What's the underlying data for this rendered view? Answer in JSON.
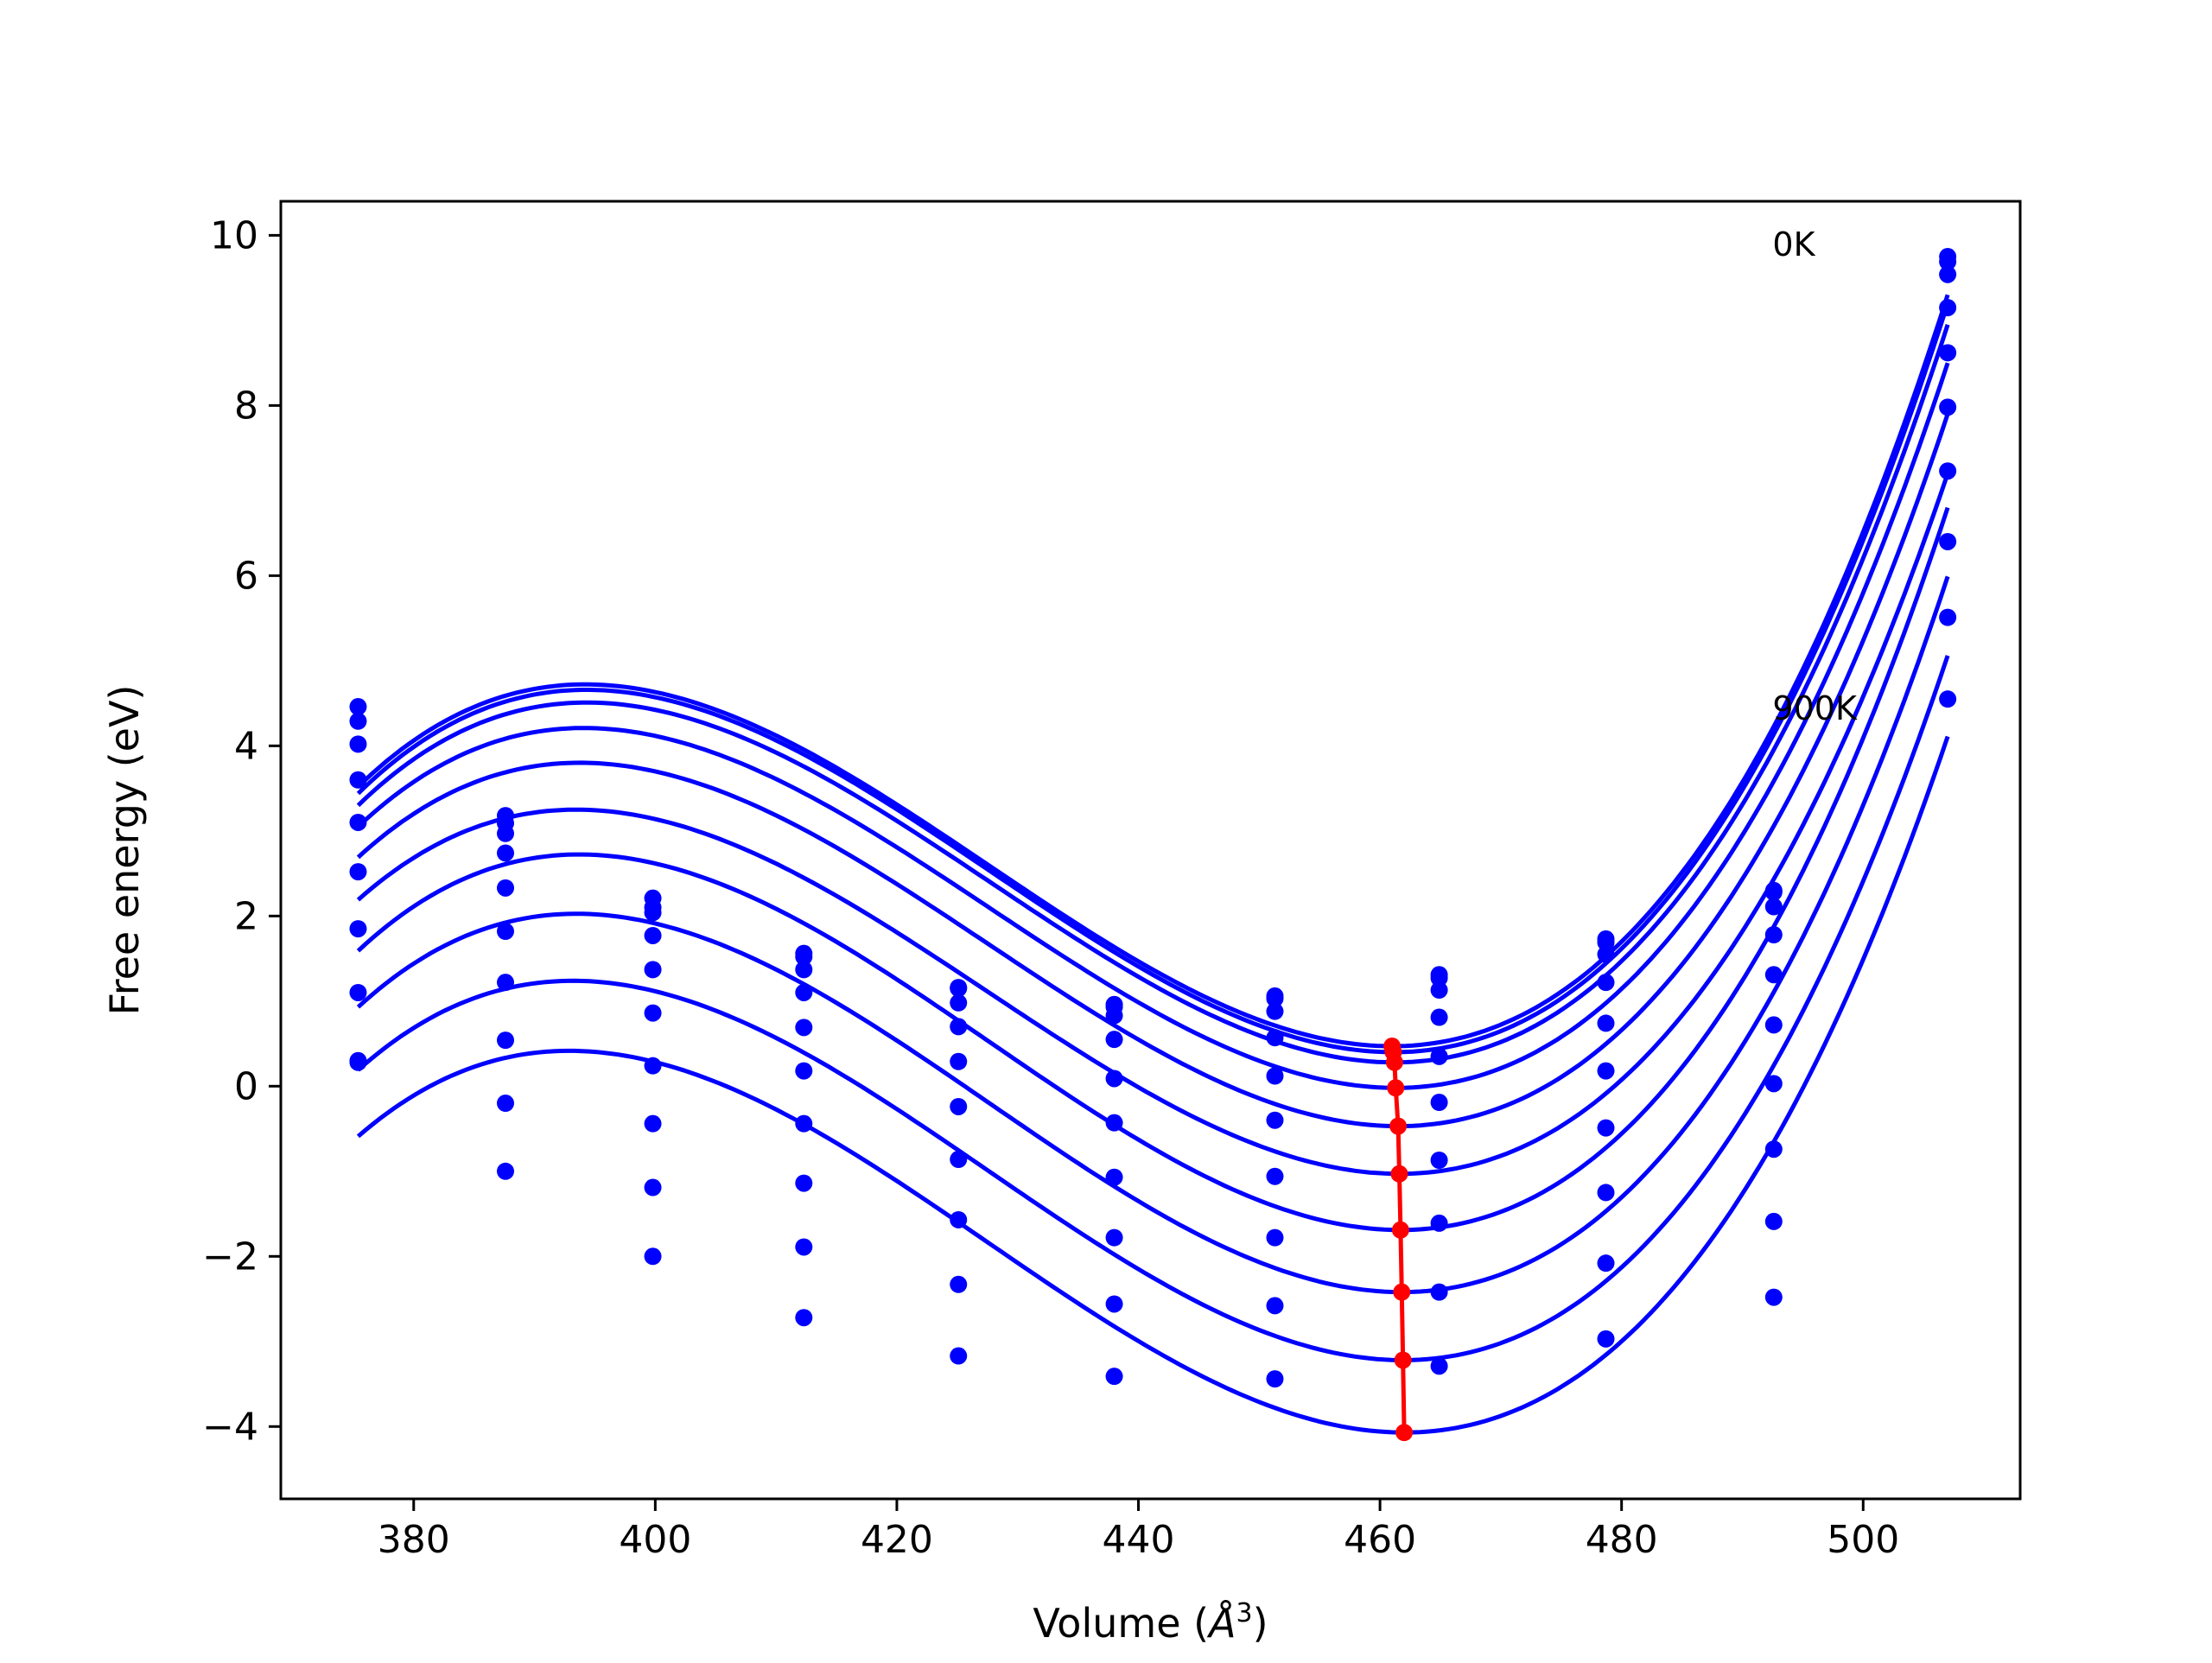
{
  "chart_data": {
    "type": "scatter",
    "title": "",
    "xlabel": "Volume (Å³)",
    "xlabel_base": "Volume (",
    "xlabel_symbol": "Å",
    "xlabel_sup": "3",
    "xlabel_close": ")",
    "ylabel": "Free energy (eV)",
    "xlim": [
      369,
      513
    ],
    "ylim": [
      -4.85,
      10.4
    ],
    "xticks": [
      380,
      400,
      420,
      440,
      460,
      480,
      500
    ],
    "xtick_labels": [
      "380",
      "400",
      "420",
      "440",
      "460",
      "480",
      "500"
    ],
    "yticks": [
      -4,
      -2,
      0,
      2,
      4,
      6,
      8,
      10
    ],
    "ytick_labels": [
      "−4",
      "−2",
      "0",
      "2",
      "4",
      "6",
      "8",
      "10"
    ],
    "grid": false,
    "legend": "none",
    "colors": {
      "data": "#0000ff",
      "minima": "#ff0000",
      "axes": "#000000"
    },
    "annotations": [
      {
        "text": "0K",
        "x": 492.5,
        "y": 9.9
      },
      {
        "text": "900K",
        "x": 492.5,
        "y": 4.45
      }
    ],
    "volumes": [
      375.4,
      387.6,
      399.8,
      412.3,
      425.1,
      438.0,
      451.3,
      464.9,
      478.7,
      492.6,
      507.0
    ],
    "series": [
      {
        "temperature": 0,
        "points": [
          4.46,
          3.18,
          2.21,
          1.56,
          1.16,
          0.96,
          1.06,
          1.31,
          1.73,
          2.3,
          9.75
        ]
      },
      {
        "temperature": 100,
        "points": [
          4.29,
          3.09,
          2.1,
          1.52,
          1.15,
          0.93,
          1.03,
          1.27,
          1.69,
          2.28,
          9.69
        ]
      },
      {
        "temperature": 200,
        "points": [
          4.02,
          2.97,
          2.04,
          1.37,
          0.98,
          0.83,
          0.88,
          1.13,
          1.55,
          2.11,
          9.54
        ]
      },
      {
        "temperature": 300,
        "points": [
          3.6,
          2.74,
          1.77,
          1.1,
          0.7,
          0.55,
          0.57,
          0.81,
          1.22,
          1.78,
          9.15
        ]
      },
      {
        "temperature": 400,
        "points": [
          3.1,
          2.33,
          1.37,
          0.69,
          0.29,
          0.09,
          0.12,
          0.35,
          0.74,
          1.31,
          8.62
        ]
      },
      {
        "temperature": 500,
        "points": [
          2.52,
          1.82,
          0.86,
          0.18,
          -0.24,
          -0.43,
          -0.4,
          -0.19,
          0.18,
          0.72,
          7.98
        ]
      },
      {
        "temperature": 600,
        "points": [
          1.85,
          1.22,
          0.24,
          -0.44,
          -0.86,
          -1.07,
          -1.06,
          -0.87,
          -0.49,
          0.03,
          7.23
        ]
      },
      {
        "temperature": 700,
        "points": [
          1.1,
          0.54,
          -0.44,
          -1.14,
          -1.57,
          -1.78,
          -1.78,
          -1.61,
          -1.25,
          -0.74,
          6.4
        ]
      },
      {
        "temperature": 800,
        "points": [
          0.3,
          -0.2,
          -1.19,
          -1.89,
          -2.33,
          -2.56,
          -2.58,
          -2.42,
          -2.08,
          -1.59,
          5.51
        ]
      },
      {
        "temperature": 900,
        "points": [
          0.28,
          -1.0,
          -2.0,
          -2.72,
          -3.17,
          -3.41,
          -3.44,
          -3.29,
          -2.97,
          -2.48,
          4.55
        ]
      }
    ],
    "fits": [
      {
        "temperature": 0,
        "vmin": 461.0,
        "fmin": 0.47,
        "left": 3.52,
        "right": 9.3
      },
      {
        "temperature": 100,
        "vmin": 461.1,
        "fmin": 0.4,
        "left": 3.44,
        "right": 9.2
      },
      {
        "temperature": 200,
        "vmin": 461.2,
        "fmin": 0.28,
        "left": 3.3,
        "right": 8.95
      },
      {
        "temperature": 300,
        "vmin": 461.3,
        "fmin": -0.02,
        "left": 3.05,
        "right": 8.5
      },
      {
        "temperature": 400,
        "vmin": 461.5,
        "fmin": -0.47,
        "left": 2.69,
        "right": 7.9
      },
      {
        "temperature": 500,
        "vmin": 461.6,
        "fmin": -1.03,
        "left": 2.19,
        "right": 7.2
      },
      {
        "temperature": 600,
        "vmin": 461.7,
        "fmin": -1.69,
        "left": 1.59,
        "right": 6.8
      },
      {
        "temperature": 700,
        "vmin": 461.8,
        "fmin": -2.42,
        "left": 0.93,
        "right": 5.99
      },
      {
        "temperature": 800,
        "vmin": 461.9,
        "fmin": -3.22,
        "left": 0.19,
        "right": 5.06
      },
      {
        "temperature": 900,
        "vmin": 462.0,
        "fmin": -4.07,
        "left": -0.59,
        "right": 4.11
      }
    ],
    "fit_range": [
      375.4,
      507.0
    ],
    "minima": [
      {
        "temperature": 0,
        "volume": 461.0,
        "energy": 0.47
      },
      {
        "temperature": 100,
        "volume": 461.1,
        "energy": 0.4
      },
      {
        "temperature": 200,
        "volume": 461.2,
        "energy": 0.28
      },
      {
        "temperature": 300,
        "volume": 461.3,
        "energy": -0.02
      },
      {
        "temperature": 400,
        "volume": 461.5,
        "energy": -0.47
      },
      {
        "temperature": 500,
        "volume": 461.6,
        "energy": -1.03
      },
      {
        "temperature": 600,
        "volume": 461.7,
        "energy": -1.69
      },
      {
        "temperature": 700,
        "volume": 461.8,
        "energy": -2.42
      },
      {
        "temperature": 800,
        "volume": 461.9,
        "energy": -3.22
      },
      {
        "temperature": 900,
        "volume": 462.0,
        "energy": -4.07
      }
    ]
  }
}
